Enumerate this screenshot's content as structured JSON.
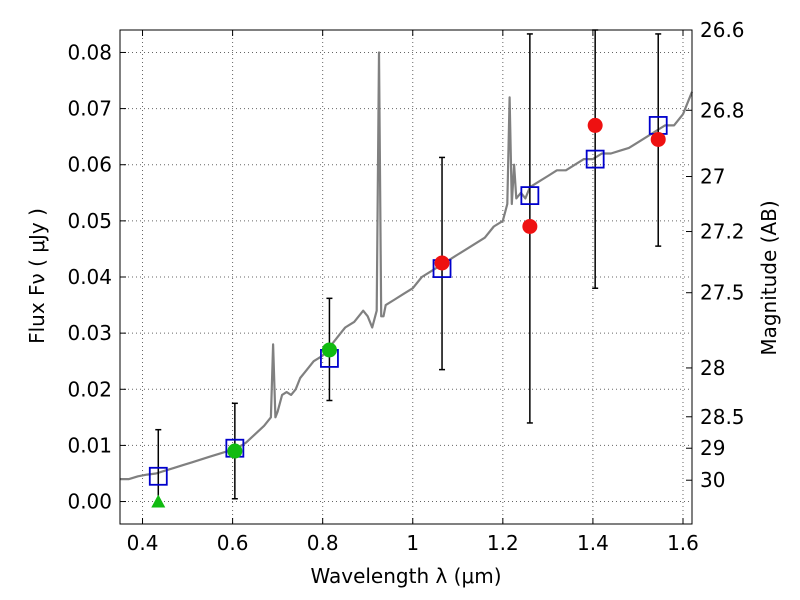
{
  "chart_data": {
    "type": "scatter",
    "xlabel": "Wavelength  λ (μm)",
    "ylabel": "Flux  Fν  ( μJy )",
    "ylabel_right": "Magnitude (AB)",
    "xlim": [
      0.35,
      1.62
    ],
    "ylim": [
      -0.004,
      0.084
    ],
    "grid": true,
    "x_ticks": [
      0.4,
      0.6,
      0.8,
      1.0,
      1.2,
      1.4,
      1.6
    ],
    "x_tick_labels": [
      "0.4",
      "0.6",
      "0.8",
      "1",
      "1.2",
      "1.4",
      "1.6"
    ],
    "y_ticks": [
      0.0,
      0.01,
      0.02,
      0.03,
      0.04,
      0.05,
      0.06,
      0.07,
      0.08
    ],
    "y_tick_labels": [
      "0.00",
      "0.01",
      "0.02",
      "0.03",
      "0.04",
      "0.05",
      "0.06",
      "0.07",
      "0.08"
    ],
    "right_ticks": [
      {
        "flux": 0.0038,
        "label": "30"
      },
      {
        "flux": 0.0095,
        "label": "29"
      },
      {
        "flux": 0.0151,
        "label": "28.5"
      },
      {
        "flux": 0.0238,
        "label": "28"
      },
      {
        "flux": 0.0372,
        "label": "27.5"
      },
      {
        "flux": 0.0481,
        "label": "27.2"
      },
      {
        "flux": 0.0579,
        "label": "27"
      },
      {
        "flux": 0.0697,
        "label": "26.8"
      },
      {
        "flux": 0.084,
        "label": "26.6"
      }
    ],
    "colors": {
      "model": "#808080",
      "box": "#0000cc",
      "red": "#ee1111",
      "green": "#11bb11",
      "errorbar": "#000000"
    },
    "series": [
      {
        "marker": "line",
        "x": [
          0.35,
          0.37,
          0.39,
          0.41,
          0.43,
          0.45,
          0.47,
          0.49,
          0.51,
          0.53,
          0.55,
          0.57,
          0.59,
          0.61,
          0.63,
          0.65,
          0.67,
          0.685,
          0.69,
          0.695,
          0.7,
          0.71,
          0.72,
          0.73,
          0.74,
          0.75,
          0.76,
          0.77,
          0.78,
          0.79,
          0.8,
          0.81,
          0.82,
          0.83,
          0.84,
          0.85,
          0.86,
          0.87,
          0.88,
          0.89,
          0.9,
          0.91,
          0.92,
          0.925,
          0.93,
          0.935,
          0.94,
          0.96,
          0.98,
          1.0,
          1.02,
          1.04,
          1.06,
          1.08,
          1.1,
          1.12,
          1.14,
          1.16,
          1.18,
          1.2,
          1.21,
          1.215,
          1.22,
          1.225,
          1.23,
          1.24,
          1.25,
          1.26,
          1.28,
          1.3,
          1.32,
          1.34,
          1.36,
          1.38,
          1.4,
          1.42,
          1.44,
          1.46,
          1.48,
          1.5,
          1.52,
          1.54,
          1.56,
          1.58,
          1.6,
          1.62
        ],
        "y": [
          0.004,
          0.004,
          0.0045,
          0.0048,
          0.005,
          0.0055,
          0.006,
          0.0065,
          0.007,
          0.0075,
          0.008,
          0.0085,
          0.009,
          0.0095,
          0.0105,
          0.012,
          0.0135,
          0.015,
          0.028,
          0.015,
          0.016,
          0.019,
          0.0195,
          0.019,
          0.02,
          0.022,
          0.023,
          0.024,
          0.025,
          0.0255,
          0.026,
          0.027,
          0.028,
          0.029,
          0.03,
          0.031,
          0.0315,
          0.032,
          0.033,
          0.034,
          0.033,
          0.031,
          0.034,
          0.08,
          0.033,
          0.033,
          0.035,
          0.036,
          0.037,
          0.038,
          0.04,
          0.041,
          0.042,
          0.043,
          0.044,
          0.045,
          0.046,
          0.047,
          0.049,
          0.05,
          0.053,
          0.072,
          0.053,
          0.06,
          0.054,
          0.055,
          0.054,
          0.056,
          0.057,
          0.058,
          0.059,
          0.059,
          0.06,
          0.061,
          0.061,
          0.062,
          0.062,
          0.0625,
          0.063,
          0.064,
          0.065,
          0.066,
          0.067,
          0.067,
          0.069,
          0.073
        ]
      },
      {
        "marker": "open-square",
        "x": [
          0.435,
          0.605,
          0.815,
          1.065,
          1.26,
          1.405,
          1.545
        ],
        "y": [
          0.0045,
          0.0095,
          0.0255,
          0.0415,
          0.0545,
          0.061,
          0.067
        ]
      },
      {
        "marker": "green-circle",
        "x": [
          0.605,
          0.815
        ],
        "y": [
          0.009,
          0.027
        ]
      },
      {
        "marker": "green-triangle",
        "x": [
          0.435
        ],
        "y": [
          0.0
        ]
      },
      {
        "marker": "red-circle",
        "x": [
          1.065,
          1.26,
          1.405,
          1.545
        ],
        "y": [
          0.0425,
          0.049,
          0.067,
          0.0645
        ]
      },
      {
        "marker": "errorbar",
        "x": [
          0.435,
          0.605,
          0.815,
          1.065,
          1.26,
          1.405,
          1.545
        ],
        "y_low": [
          0.0,
          0.0005,
          0.018,
          0.0235,
          0.014,
          0.038,
          0.0455
        ],
        "y_high": [
          0.0128,
          0.0175,
          0.0362,
          0.0613,
          0.0833,
          0.084,
          0.0833
        ]
      }
    ]
  }
}
